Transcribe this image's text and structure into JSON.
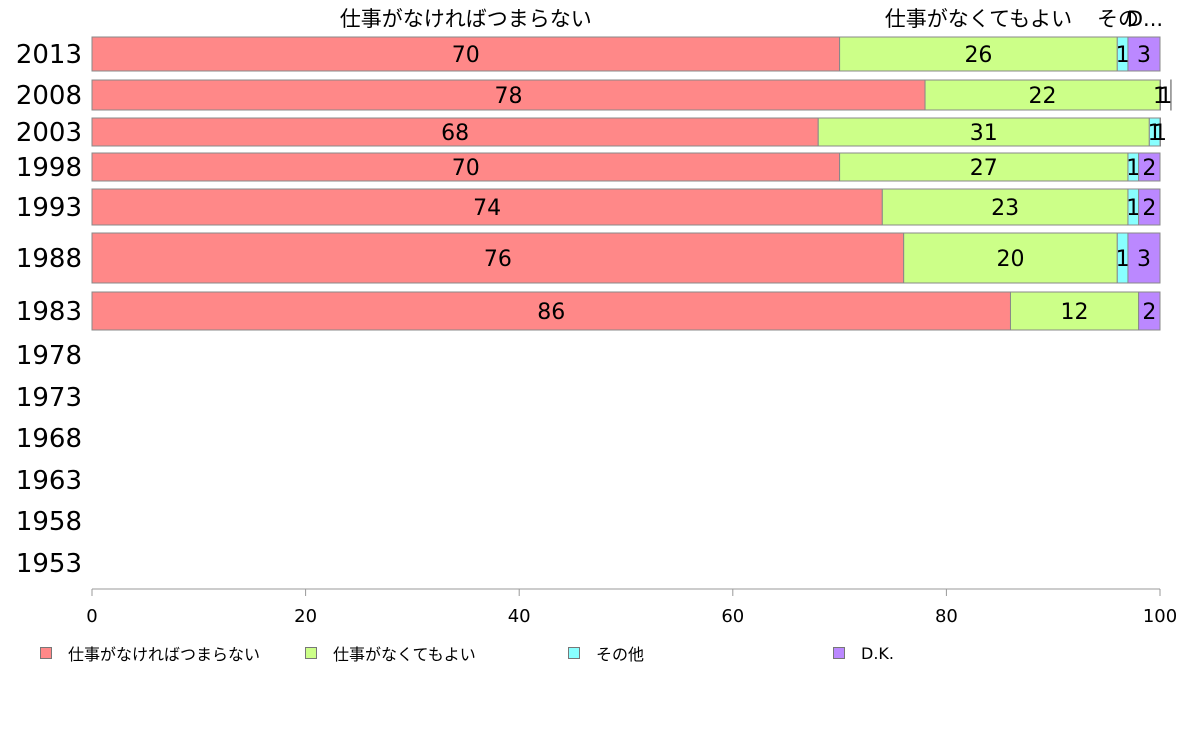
{
  "chart_data": {
    "type": "bar",
    "orientation": "horizontal",
    "stacked": true,
    "categories": [
      "2013",
      "2008",
      "2003",
      "1998",
      "1993",
      "1988",
      "1983",
      "1978",
      "1973",
      "1968",
      "1963",
      "1958",
      "1953"
    ],
    "series": [
      {
        "name": "仕事がなければつまらない",
        "color": "#ff8888",
        "values": [
          70,
          78,
          68,
          70,
          74,
          76,
          86,
          null,
          null,
          null,
          null,
          null,
          null
        ]
      },
      {
        "name": "仕事がなくてもよい",
        "color": "#ccff88",
        "values": [
          26,
          22,
          31,
          27,
          23,
          20,
          12,
          null,
          null,
          null,
          null,
          null,
          null
        ]
      },
      {
        "name": "その他",
        "color": "#88ffff",
        "values": [
          1,
          1,
          1,
          1,
          1,
          1,
          0,
          null,
          null,
          null,
          null,
          null,
          null
        ]
      },
      {
        "name": "D.K.",
        "color": "#bb88ff",
        "values": [
          3,
          1,
          1,
          2,
          2,
          3,
          2,
          null,
          null,
          null,
          null,
          null,
          null
        ]
      }
    ],
    "top_labels": [
      "仕事がなければつまらない",
      "仕事がなくてもよい",
      "その",
      "D..."
    ],
    "xlim": [
      0,
      100
    ],
    "xticks": [
      0,
      20,
      40,
      60,
      80,
      100
    ],
    "grid": false,
    "legend_position": "bottom"
  }
}
